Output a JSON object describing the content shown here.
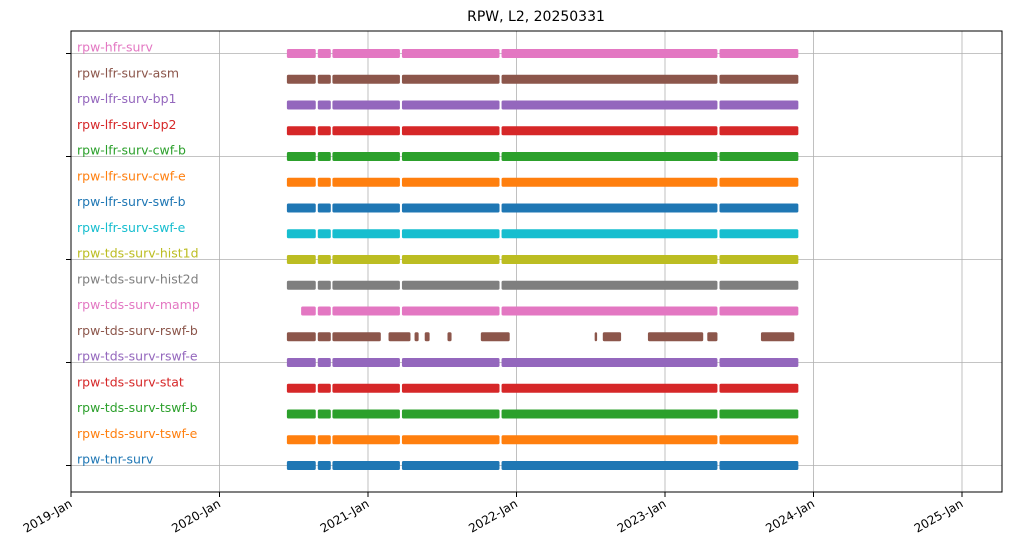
{
  "chart_data": {
    "type": "timeline",
    "title": "RPW, L2, 20250331",
    "xlabel": "",
    "ylabel": "",
    "x_ticks": [
      "2019-Jan",
      "2020-Jan",
      "2021-Jan",
      "2022-Jan",
      "2023-Jan",
      "2024-Jan",
      "2025-Jan"
    ],
    "x_range": [
      "2019-01-01",
      "2025-04-15"
    ],
    "grid": true,
    "series": [
      {
        "name": "rpw-hfr-surv",
        "color": "#e377c2",
        "segments": [
          [
            "2020-06-15",
            "2020-08-25"
          ],
          [
            "2020-08-30",
            "2020-10-01"
          ],
          [
            "2020-10-05",
            "2021-03-20"
          ],
          [
            "2021-03-25",
            "2021-11-20"
          ],
          [
            "2021-11-25",
            "2023-05-10"
          ],
          [
            "2023-05-15",
            "2023-11-25"
          ]
        ]
      },
      {
        "name": "rpw-lfr-surv-asm",
        "color": "#8c564b",
        "segments": [
          [
            "2020-06-15",
            "2020-08-25"
          ],
          [
            "2020-08-30",
            "2020-10-01"
          ],
          [
            "2020-10-05",
            "2021-03-20"
          ],
          [
            "2021-03-25",
            "2021-11-20"
          ],
          [
            "2021-11-25",
            "2023-05-10"
          ],
          [
            "2023-05-15",
            "2023-11-25"
          ]
        ]
      },
      {
        "name": "rpw-lfr-surv-bp1",
        "color": "#9467bd",
        "segments": [
          [
            "2020-06-15",
            "2020-08-25"
          ],
          [
            "2020-08-30",
            "2020-10-01"
          ],
          [
            "2020-10-05",
            "2021-03-20"
          ],
          [
            "2021-03-25",
            "2021-11-20"
          ],
          [
            "2021-11-25",
            "2023-05-10"
          ],
          [
            "2023-05-15",
            "2023-11-25"
          ]
        ]
      },
      {
        "name": "rpw-lfr-surv-bp2",
        "color": "#d62728",
        "segments": [
          [
            "2020-06-15",
            "2020-08-25"
          ],
          [
            "2020-08-30",
            "2020-10-01"
          ],
          [
            "2020-10-05",
            "2021-03-20"
          ],
          [
            "2021-03-25",
            "2021-11-20"
          ],
          [
            "2021-11-25",
            "2023-05-10"
          ],
          [
            "2023-05-15",
            "2023-11-25"
          ]
        ]
      },
      {
        "name": "rpw-lfr-surv-cwf-b",
        "color": "#2ca02c",
        "segments": [
          [
            "2020-06-15",
            "2020-08-25"
          ],
          [
            "2020-08-30",
            "2020-10-01"
          ],
          [
            "2020-10-05",
            "2021-03-20"
          ],
          [
            "2021-03-25",
            "2021-11-20"
          ],
          [
            "2021-11-25",
            "2023-05-10"
          ],
          [
            "2023-05-15",
            "2023-11-25"
          ]
        ]
      },
      {
        "name": "rpw-lfr-surv-cwf-e",
        "color": "#ff7f0e",
        "segments": [
          [
            "2020-06-15",
            "2020-08-25"
          ],
          [
            "2020-08-30",
            "2020-10-01"
          ],
          [
            "2020-10-05",
            "2021-03-20"
          ],
          [
            "2021-03-25",
            "2021-11-20"
          ],
          [
            "2021-11-25",
            "2023-05-10"
          ],
          [
            "2023-05-15",
            "2023-11-25"
          ]
        ]
      },
      {
        "name": "rpw-lfr-surv-swf-b",
        "color": "#1f77b4",
        "segments": [
          [
            "2020-06-15",
            "2020-08-25"
          ],
          [
            "2020-08-30",
            "2020-10-01"
          ],
          [
            "2020-10-05",
            "2021-03-20"
          ],
          [
            "2021-03-25",
            "2021-11-20"
          ],
          [
            "2021-11-25",
            "2023-05-10"
          ],
          [
            "2023-05-15",
            "2023-11-25"
          ]
        ]
      },
      {
        "name": "rpw-lfr-surv-swf-e",
        "color": "#17becf",
        "segments": [
          [
            "2020-06-15",
            "2020-08-25"
          ],
          [
            "2020-08-30",
            "2020-10-01"
          ],
          [
            "2020-10-05",
            "2021-03-20"
          ],
          [
            "2021-03-25",
            "2021-11-20"
          ],
          [
            "2021-11-25",
            "2023-05-10"
          ],
          [
            "2023-05-15",
            "2023-11-25"
          ]
        ]
      },
      {
        "name": "rpw-tds-surv-hist1d",
        "color": "#bcbd22",
        "segments": [
          [
            "2020-06-15",
            "2020-08-25"
          ],
          [
            "2020-08-30",
            "2020-10-01"
          ],
          [
            "2020-10-05",
            "2021-03-20"
          ],
          [
            "2021-03-25",
            "2021-11-20"
          ],
          [
            "2021-11-25",
            "2023-05-10"
          ],
          [
            "2023-05-15",
            "2023-11-25"
          ]
        ]
      },
      {
        "name": "rpw-tds-surv-hist2d",
        "color": "#7f7f7f",
        "segments": [
          [
            "2020-06-15",
            "2020-08-25"
          ],
          [
            "2020-08-30",
            "2020-10-01"
          ],
          [
            "2020-10-05",
            "2021-03-20"
          ],
          [
            "2021-03-25",
            "2021-11-20"
          ],
          [
            "2021-11-25",
            "2023-05-10"
          ],
          [
            "2023-05-15",
            "2023-11-25"
          ]
        ]
      },
      {
        "name": "rpw-tds-surv-mamp",
        "color": "#e377c2",
        "segments": [
          [
            "2020-07-20",
            "2020-08-25"
          ],
          [
            "2020-08-30",
            "2020-10-01"
          ],
          [
            "2020-10-05",
            "2021-03-20"
          ],
          [
            "2021-03-25",
            "2021-11-20"
          ],
          [
            "2021-11-25",
            "2023-05-10"
          ],
          [
            "2023-05-15",
            "2023-11-25"
          ]
        ]
      },
      {
        "name": "rpw-tds-surv-rswf-b",
        "color": "#8c564b",
        "segments": [
          [
            "2020-06-15",
            "2020-08-25"
          ],
          [
            "2020-08-30",
            "2020-10-01"
          ],
          [
            "2020-10-05",
            "2021-02-01"
          ],
          [
            "2021-02-20",
            "2021-04-15"
          ],
          [
            "2021-04-25",
            "2021-05-05"
          ],
          [
            "2021-05-20",
            "2021-06-01"
          ],
          [
            "2021-07-15",
            "2021-07-25"
          ],
          [
            "2021-10-05",
            "2021-12-15"
          ],
          [
            "2022-07-12",
            "2022-07-18"
          ],
          [
            "2022-08-01",
            "2022-09-15"
          ],
          [
            "2022-11-20",
            "2023-04-05"
          ],
          [
            "2023-04-15",
            "2023-05-10"
          ],
          [
            "2023-08-25",
            "2023-11-15"
          ]
        ]
      },
      {
        "name": "rpw-tds-surv-rswf-e",
        "color": "#9467bd",
        "segments": [
          [
            "2020-06-15",
            "2020-08-25"
          ],
          [
            "2020-08-30",
            "2020-10-01"
          ],
          [
            "2020-10-05",
            "2021-03-20"
          ],
          [
            "2021-03-25",
            "2021-11-20"
          ],
          [
            "2021-11-25",
            "2023-05-10"
          ],
          [
            "2023-05-15",
            "2023-11-25"
          ]
        ]
      },
      {
        "name": "rpw-tds-surv-stat",
        "color": "#d62728",
        "segments": [
          [
            "2020-06-15",
            "2020-08-25"
          ],
          [
            "2020-08-30",
            "2020-10-01"
          ],
          [
            "2020-10-05",
            "2021-03-20"
          ],
          [
            "2021-03-25",
            "2021-11-20"
          ],
          [
            "2021-11-25",
            "2023-05-10"
          ],
          [
            "2023-05-15",
            "2023-11-25"
          ]
        ]
      },
      {
        "name": "rpw-tds-surv-tswf-b",
        "color": "#2ca02c",
        "segments": [
          [
            "2020-06-15",
            "2020-08-25"
          ],
          [
            "2020-08-30",
            "2020-10-01"
          ],
          [
            "2020-10-05",
            "2021-03-20"
          ],
          [
            "2021-03-25",
            "2021-11-20"
          ],
          [
            "2021-11-25",
            "2023-05-10"
          ],
          [
            "2023-05-15",
            "2023-11-25"
          ]
        ]
      },
      {
        "name": "rpw-tds-surv-tswf-e",
        "color": "#ff7f0e",
        "segments": [
          [
            "2020-06-15",
            "2020-08-25"
          ],
          [
            "2020-08-30",
            "2020-10-01"
          ],
          [
            "2020-10-05",
            "2021-03-20"
          ],
          [
            "2021-03-25",
            "2021-11-20"
          ],
          [
            "2021-11-25",
            "2023-05-10"
          ],
          [
            "2023-05-15",
            "2023-11-25"
          ]
        ]
      },
      {
        "name": "rpw-tnr-surv",
        "color": "#1f77b4",
        "segments": [
          [
            "2020-06-15",
            "2020-08-25"
          ],
          [
            "2020-08-30",
            "2020-10-01"
          ],
          [
            "2020-10-05",
            "2021-03-20"
          ],
          [
            "2021-03-25",
            "2021-11-20"
          ],
          [
            "2021-11-25",
            "2023-05-10"
          ],
          [
            "2023-05-15",
            "2023-11-25"
          ]
        ]
      }
    ]
  }
}
